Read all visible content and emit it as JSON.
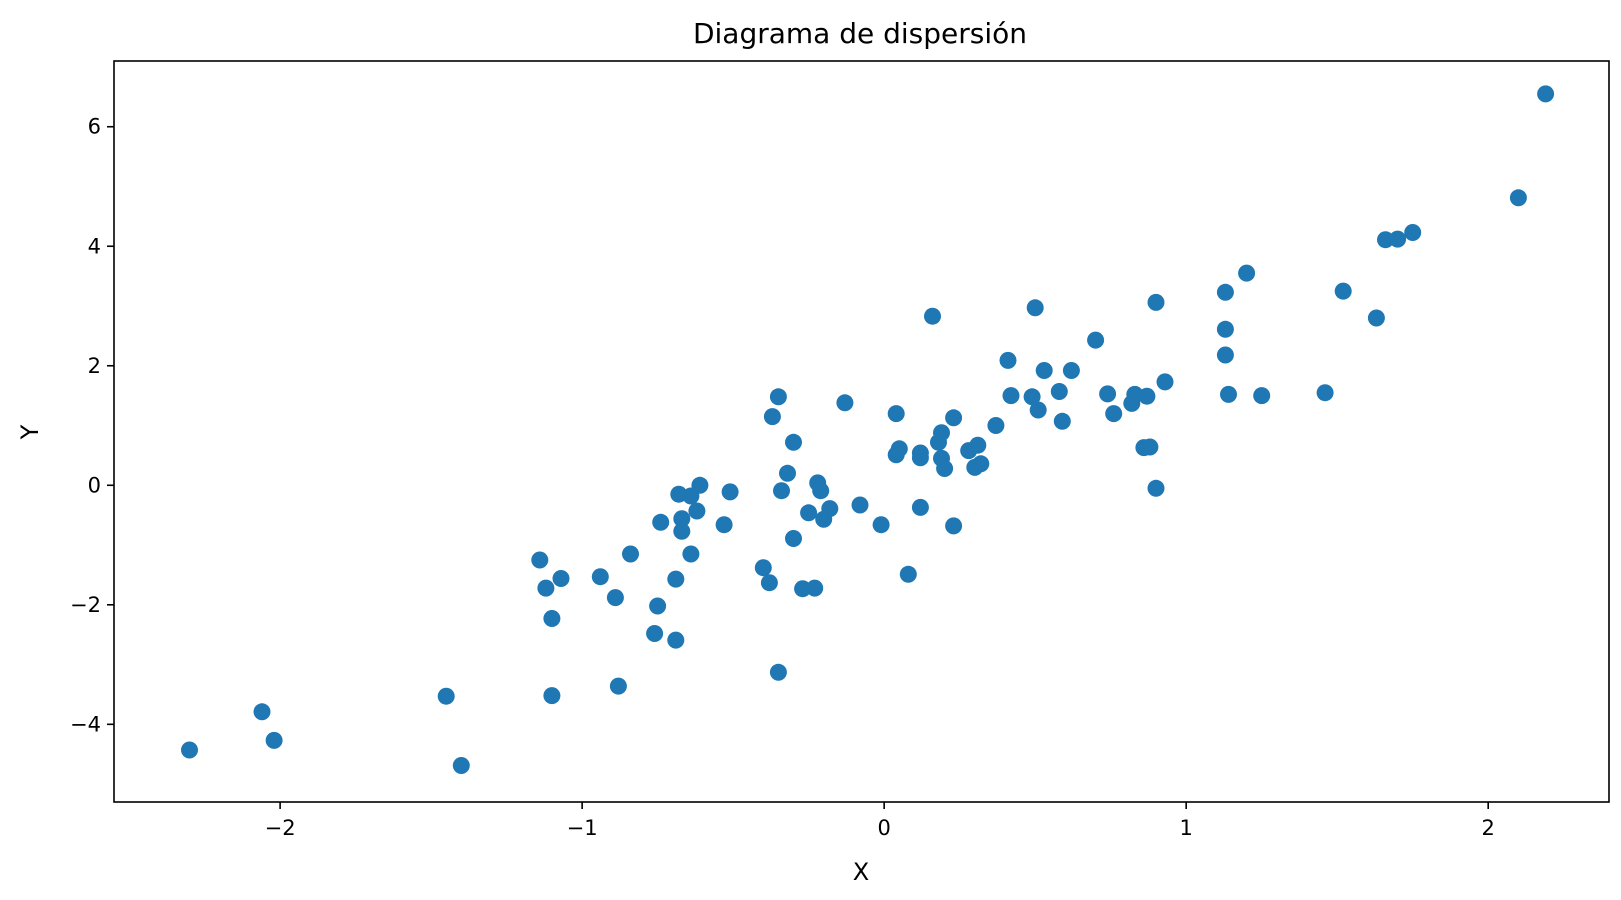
{
  "chart_data": {
    "type": "scatter",
    "title": "Diagrama de dispersión",
    "xlabel": "X",
    "ylabel": "Y",
    "xlim": [
      -2.55,
      2.4
    ],
    "ylim": [
      -5.3,
      7.1
    ],
    "xticks": [
      -2,
      -1,
      0,
      1,
      2
    ],
    "xtick_labels": [
      "−2",
      "−1",
      "0",
      "1",
      "2"
    ],
    "yticks": [
      -4,
      -2,
      0,
      2,
      4,
      6
    ],
    "ytick_labels": [
      "−4",
      "−2",
      "0",
      "2",
      "4",
      "6"
    ],
    "grid": false,
    "legend": "none",
    "color": "#1f77b4",
    "series": [
      {
        "points": [
          [
            -2.3,
            -4.43
          ],
          [
            -2.06,
            -3.79
          ],
          [
            -2.02,
            -4.27
          ],
          [
            -1.45,
            -3.53
          ],
          [
            -1.4,
            -4.69
          ],
          [
            -1.14,
            -1.25
          ],
          [
            -1.12,
            -1.72
          ],
          [
            -1.1,
            -2.23
          ],
          [
            -1.1,
            -3.52
          ],
          [
            -1.07,
            -1.56
          ],
          [
            -0.94,
            -1.53
          ],
          [
            -0.89,
            -1.88
          ],
          [
            -0.88,
            -3.36
          ],
          [
            -0.84,
            -1.15
          ],
          [
            -0.76,
            -2.48
          ],
          [
            -0.75,
            -2.02
          ],
          [
            -0.74,
            -0.62
          ],
          [
            -0.69,
            -1.57
          ],
          [
            -0.69,
            -2.59
          ],
          [
            -0.68,
            -0.15
          ],
          [
            -0.67,
            -0.56
          ],
          [
            -0.67,
            -0.77
          ],
          [
            -0.64,
            -1.15
          ],
          [
            -0.64,
            -0.18
          ],
          [
            -0.62,
            -0.43
          ],
          [
            -0.61,
            0.0
          ],
          [
            -0.53,
            -0.66
          ],
          [
            -0.51,
            -0.11
          ],
          [
            -0.4,
            -1.38
          ],
          [
            -0.38,
            -1.63
          ],
          [
            -0.37,
            1.15
          ],
          [
            -0.35,
            -3.13
          ],
          [
            -0.35,
            1.48
          ],
          [
            -0.34,
            -0.09
          ],
          [
            -0.32,
            0.2
          ],
          [
            -0.3,
            0.72
          ],
          [
            -0.3,
            -0.89
          ],
          [
            -0.27,
            -1.73
          ],
          [
            -0.25,
            -0.46
          ],
          [
            -0.23,
            -1.72
          ],
          [
            -0.22,
            0.04
          ],
          [
            -0.21,
            -0.09
          ],
          [
            -0.2,
            -0.57
          ],
          [
            -0.18,
            -0.39
          ],
          [
            -0.13,
            1.38
          ],
          [
            -0.08,
            -0.33
          ],
          [
            -0.01,
            -0.66
          ],
          [
            0.04,
            1.2
          ],
          [
            0.04,
            0.51
          ],
          [
            0.05,
            0.61
          ],
          [
            0.08,
            -1.49
          ],
          [
            0.12,
            0.54
          ],
          [
            0.12,
            0.46
          ],
          [
            0.12,
            -0.37
          ],
          [
            0.16,
            2.83
          ],
          [
            0.18,
            0.72
          ],
          [
            0.19,
            0.88
          ],
          [
            0.19,
            0.45
          ],
          [
            0.2,
            0.28
          ],
          [
            0.23,
            1.13
          ],
          [
            0.23,
            -0.68
          ],
          [
            0.28,
            0.58
          ],
          [
            0.3,
            0.3
          ],
          [
            0.31,
            0.67
          ],
          [
            0.32,
            0.36
          ],
          [
            0.37,
            1.0
          ],
          [
            0.41,
            2.09
          ],
          [
            0.42,
            1.5
          ],
          [
            0.49,
            1.48
          ],
          [
            0.5,
            2.97
          ],
          [
            0.51,
            1.26
          ],
          [
            0.53,
            1.92
          ],
          [
            0.58,
            1.57
          ],
          [
            0.59,
            1.07
          ],
          [
            0.62,
            1.92
          ],
          [
            0.7,
            2.43
          ],
          [
            0.74,
            1.53
          ],
          [
            0.76,
            1.2
          ],
          [
            0.82,
            1.37
          ],
          [
            0.83,
            1.52
          ],
          [
            0.86,
            0.63
          ],
          [
            0.87,
            1.49
          ],
          [
            0.88,
            0.64
          ],
          [
            0.9,
            -0.05
          ],
          [
            0.9,
            3.06
          ],
          [
            0.93,
            1.73
          ],
          [
            1.13,
            3.23
          ],
          [
            1.13,
            2.61
          ],
          [
            1.13,
            2.18
          ],
          [
            1.14,
            1.52
          ],
          [
            1.2,
            3.55
          ],
          [
            1.25,
            1.5
          ],
          [
            1.46,
            1.55
          ],
          [
            1.52,
            3.25
          ],
          [
            1.63,
            2.8
          ],
          [
            1.66,
            4.11
          ],
          [
            1.7,
            4.12
          ],
          [
            1.75,
            4.23
          ],
          [
            2.1,
            4.81
          ],
          [
            2.19,
            6.55
          ]
        ]
      }
    ]
  }
}
